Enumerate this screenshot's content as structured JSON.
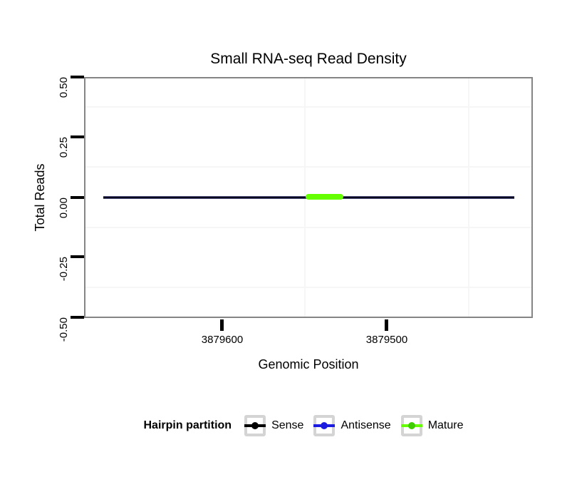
{
  "title": "Small RNA-seq Read Density",
  "x_axis": {
    "title": "Genomic Position",
    "tick_labels": [
      "3879600",
      "3879500"
    ]
  },
  "y_axis": {
    "title": "Total Reads",
    "tick_labels": [
      "0.50",
      "0.25",
      "0.00",
      "-0.25",
      "-0.50"
    ]
  },
  "legend": {
    "title": "Hairpin partition",
    "items": [
      {
        "label": "Sense",
        "line_color": "#000000",
        "dot_color": "#000000"
      },
      {
        "label": "Antisense",
        "line_color": "#1c1ce0",
        "dot_color": "#1c1ce0"
      },
      {
        "label": "Mature",
        "line_color": "#66ff00",
        "dot_color": "#3fcc00"
      }
    ]
  },
  "colors": {
    "panel_border": "#858585",
    "minor_gridline": "#f6f6f6",
    "sense_line": "#000020",
    "antisense_line": "#1c1ce0",
    "mature_segment": "#66ff00",
    "tick_marks": "#000000",
    "background": "#ffffff"
  },
  "chart_data": {
    "type": "line",
    "title": "Small RNA-seq Read Density",
    "xlabel": "Genomic Position",
    "ylabel": "Total Reads",
    "x_axis_reversed": true,
    "xlim": [
      3879684,
      3879411
    ],
    "ylim": [
      -0.5,
      0.5
    ],
    "x_major_ticks": [
      3879600,
      3879500
    ],
    "x_minor_gridlines": [
      3879550,
      3879450
    ],
    "y_major_ticks": [
      0.5,
      0.25,
      0.0,
      -0.25,
      -0.5
    ],
    "y_minor_gridlines": [
      0.375,
      0.125,
      -0.125,
      -0.375
    ],
    "grid": "minor gridlines only, very light grey; white panel with grey border",
    "legend_position": "bottom",
    "series": [
      {
        "name": "Sense",
        "color": "#000000",
        "style": "line",
        "x_start": 3879672,
        "x_end": 3879422,
        "y_value": 0,
        "note": "flat line at zero reads across entire hairpin region"
      },
      {
        "name": "Antisense",
        "color": "#1c1ce0",
        "style": "line",
        "x_start": 3879672,
        "x_end": 3879422,
        "y_value": 0,
        "note": "flat at zero, overplotted with the Sense line (navy fringe visible)"
      },
      {
        "name": "Mature",
        "color": "#66ff00",
        "style": "thick-line",
        "x_start": 3879549,
        "x_end": 3879527,
        "y_value": 0,
        "note": "thick bright green segment at zero reads"
      }
    ]
  }
}
